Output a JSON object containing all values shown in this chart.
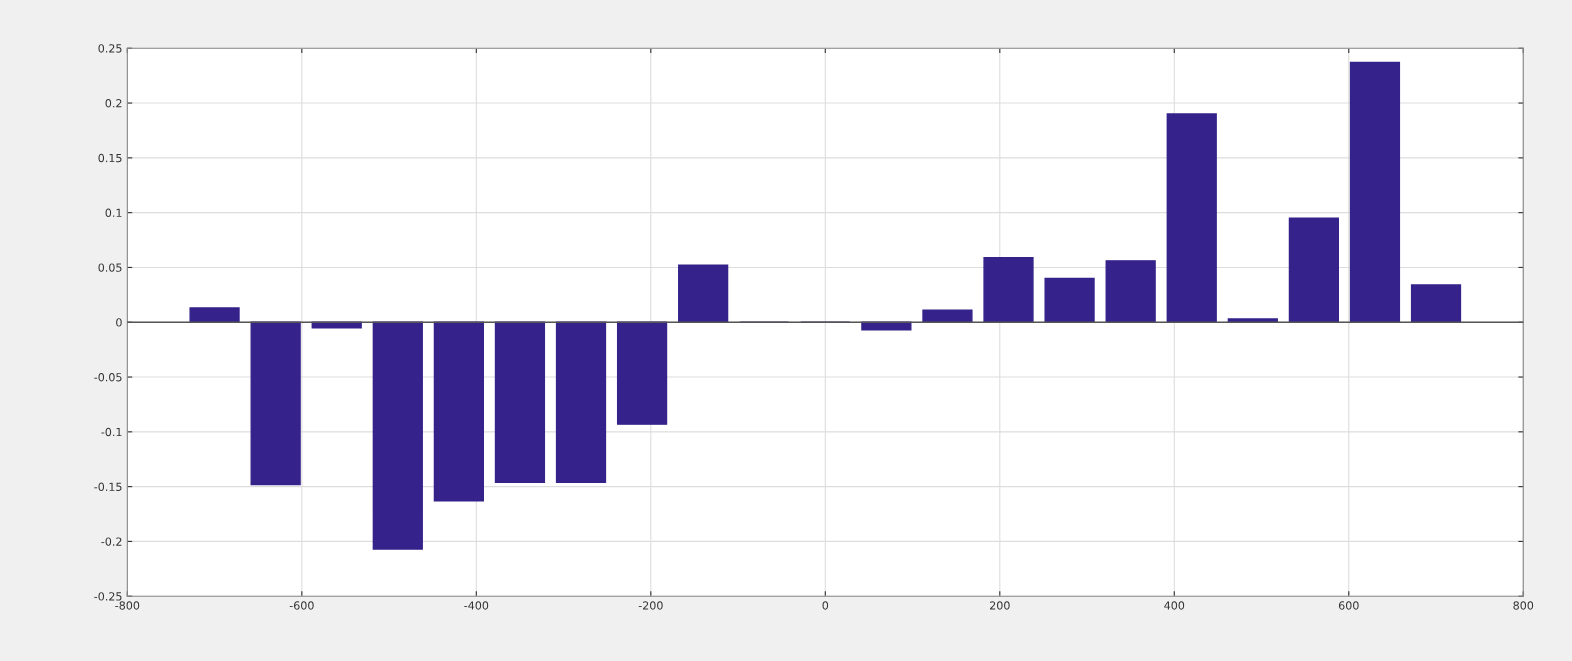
{
  "chart_data": {
    "type": "bar",
    "x": [
      -700,
      -630,
      -560,
      -490,
      -420,
      -350,
      -280,
      -210,
      -140,
      -70,
      0,
      70,
      140,
      210,
      280,
      350,
      420,
      490,
      560,
      630,
      700
    ],
    "values": [
      0.013,
      -0.148,
      -0.005,
      -0.207,
      -0.163,
      -0.146,
      -0.146,
      -0.093,
      0.052,
      0,
      0,
      -0.007,
      0.011,
      0.059,
      0.04,
      0.056,
      0.19,
      0.003,
      0.095,
      0.237,
      0.034
    ],
    "color": "#35228a",
    "xlim": [
      -800,
      800
    ],
    "xticks": [
      -800,
      -600,
      -400,
      -200,
      0,
      200,
      400,
      600,
      800
    ],
    "ylim": [
      -0.25,
      0.25
    ],
    "yticks": [
      -0.25,
      -0.2,
      -0.15,
      -0.1,
      -0.05,
      0,
      0.05,
      0.1,
      0.15,
      0.2,
      0.25
    ],
    "grid": true
  }
}
